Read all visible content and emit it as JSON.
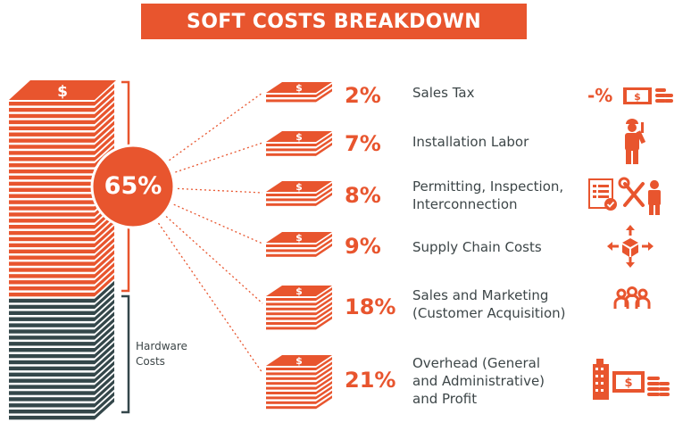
{
  "title": "SOFT COSTS BREAKDOWN",
  "soft_total": "65%",
  "hardware_label": "Hardware\nCosts",
  "items": [
    {
      "percent": "2%",
      "label": "Sales Tax",
      "icon": "sales-tax-icon",
      "icon_text": "-%"
    },
    {
      "percent": "7%",
      "label": "Installation Labor",
      "icon": "worker-icon"
    },
    {
      "percent": "8%",
      "label": "Permitting, Inspection,\nInterconnection",
      "icon": "permitting-icon"
    },
    {
      "percent": "9%",
      "label": "Supply Chain Costs",
      "icon": "supply-chain-icon"
    },
    {
      "percent": "18%",
      "label": "Sales and Marketing\n(Customer Acquisition)",
      "icon": "people-icon"
    },
    {
      "percent": "21%",
      "label": "Overhead (General\nand Administrative)\nand Profit",
      "icon": "overhead-icon"
    }
  ],
  "colors": {
    "accent": "#e8552e",
    "dark": "#34474a",
    "text": "#3d4648"
  }
}
